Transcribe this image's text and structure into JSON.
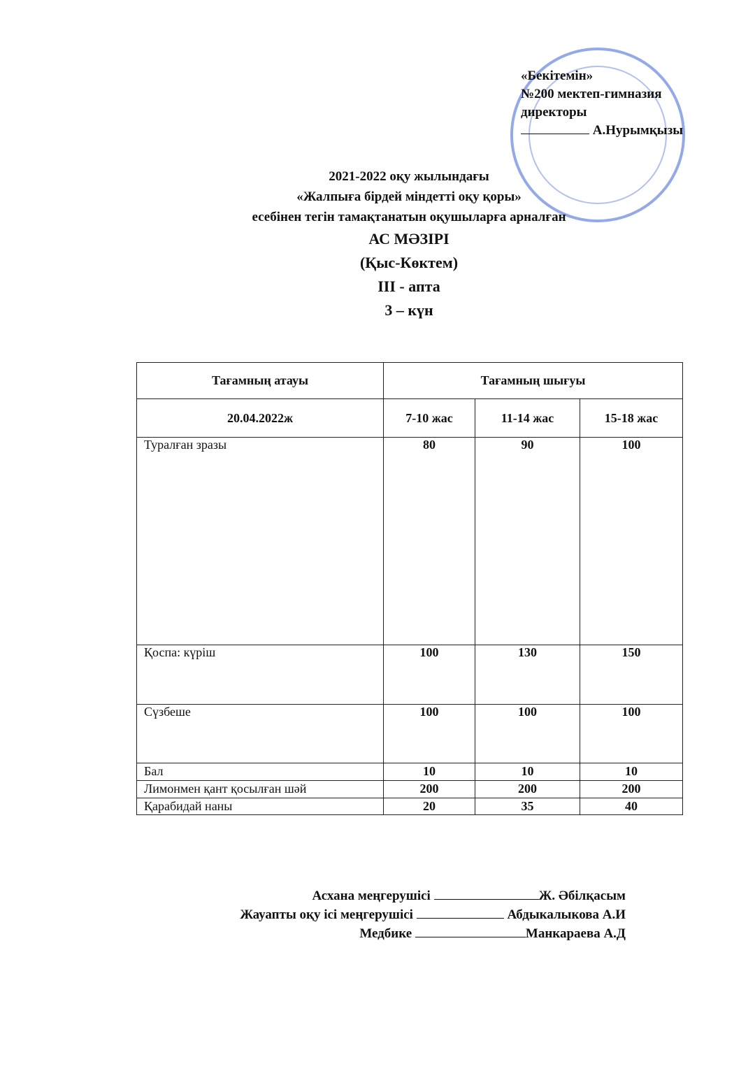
{
  "approval": {
    "line1": "«Бекітемін»",
    "line2": "№200 мектеп-гимназия",
    "line3": "директоры",
    "name": "А.Нурымқызы"
  },
  "titles": {
    "line1": "2021-2022 оқу жылындағы",
    "line2": "«Жалпыға бірдей міндетті оқу қоры»",
    "line3": "есебінен тегін тамақтанатын оқушыларға арналған",
    "menu": "АС МӘЗІРІ",
    "season": "(Қыс-Көктем)",
    "week": "III - апта",
    "day": "3 – күн"
  },
  "table": {
    "header_name": "Тағамның атауы",
    "header_output": "Тағамның шығуы",
    "date": "20.04.2022ж",
    "age_groups": [
      "7-10 жас",
      "11-14 жас",
      "15-18 жас"
    ],
    "rows": [
      {
        "name": "Туралған зразы",
        "values": [
          "80",
          "90",
          "100"
        ]
      },
      {
        "name": "Қоспа: күріш",
        "values": [
          "100",
          "130",
          "150"
        ]
      },
      {
        "name": "Сүзбеше",
        "values": [
          "100",
          "100",
          "100"
        ]
      },
      {
        "name": "Бал",
        "values": [
          "10",
          "10",
          "10"
        ]
      },
      {
        "name": "Лимонмен қант қосылған шәй",
        "values": [
          "200",
          "200",
          "200"
        ]
      },
      {
        "name": "Қарабидай наны",
        "values": [
          "20",
          "35",
          "40"
        ]
      }
    ]
  },
  "signatures": [
    {
      "role": "Асхана меңгерушісі",
      "name": "Ж. Әбілқасым"
    },
    {
      "role": "Жауапты оқу ісі меңгерушісі",
      "name": "Абдыкалыкова А.И"
    },
    {
      "role": "Медбике",
      "name": "Манкараева А.Д"
    }
  ]
}
